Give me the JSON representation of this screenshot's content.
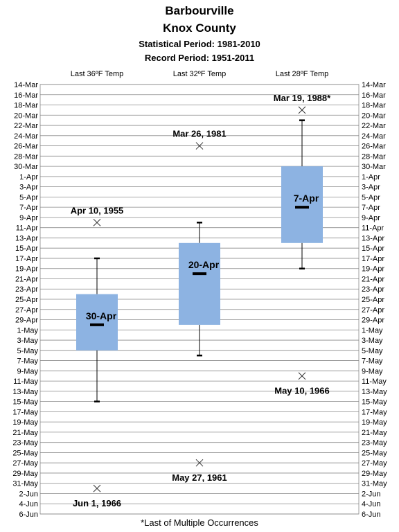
{
  "title": "Barbourville",
  "subtitle": "Knox County",
  "statistical_period": "Statistical Period: 1981-2010",
  "record_period": "Record Period: 1951-2011",
  "footnote": "*Last of Multiple Occurrences",
  "colors": {
    "box_fill": "#8db3e2",
    "grid": "#888888",
    "median": "#000000"
  },
  "chart_data": {
    "type": "box",
    "y_axis": {
      "ticks": [
        "14-Mar",
        "16-Mar",
        "18-Mar",
        "20-Mar",
        "22-Mar",
        "24-Mar",
        "26-Mar",
        "28-Mar",
        "30-Mar",
        "1-Apr",
        "3-Apr",
        "5-Apr",
        "7-Apr",
        "9-Apr",
        "11-Apr",
        "13-Apr",
        "15-Apr",
        "17-Apr",
        "19-Apr",
        "21-Apr",
        "23-Apr",
        "25-Apr",
        "27-Apr",
        "29-Apr",
        "1-May",
        "3-May",
        "5-May",
        "7-May",
        "9-May",
        "11-May",
        "13-May",
        "15-May",
        "17-May",
        "19-May",
        "21-May",
        "23-May",
        "25-May",
        "27-May",
        "29-May",
        "31-May",
        "2-Jun",
        "4-Jun",
        "6-Jun"
      ],
      "range": [
        "14-Mar",
        "6-Jun"
      ],
      "direction": "top-to-bottom",
      "labels_on": "both sides",
      "grid": true
    },
    "series": [
      {
        "name": "Last 36ºF Temp",
        "whisker_low": "17-Apr",
        "q1": "24-Apr",
        "median": "30-Apr",
        "q3": "5-May",
        "whisker_high": "15-May",
        "median_label": "30-Apr",
        "record_early": {
          "date": "10-Apr",
          "label": "Apr 10, 1955"
        },
        "record_late": {
          "date": "1-Jun",
          "label": "Jun 1, 1966"
        }
      },
      {
        "name": "Last 32ºF Temp",
        "whisker_low": "10-Apr",
        "q1": "14-Apr",
        "median": "20-Apr",
        "q3": "30-Apr",
        "whisker_high": "6-May",
        "median_label": "20-Apr",
        "record_early": {
          "date": "26-Mar",
          "label": "Mar 26, 1981"
        },
        "record_late": {
          "date": "27-May",
          "label": "May 27, 1961"
        }
      },
      {
        "name": "Last 28ºF Temp",
        "whisker_low": "21-Mar",
        "q1": "30-Mar",
        "median": "7-Apr",
        "q3": "14-Apr",
        "whisker_high": "19-Apr",
        "median_label": "7-Apr",
        "record_early": {
          "date": "19-Mar",
          "label": "Mar 19, 1988*"
        },
        "record_late": {
          "date": "10-May",
          "label": "May 10, 1966"
        }
      }
    ]
  }
}
